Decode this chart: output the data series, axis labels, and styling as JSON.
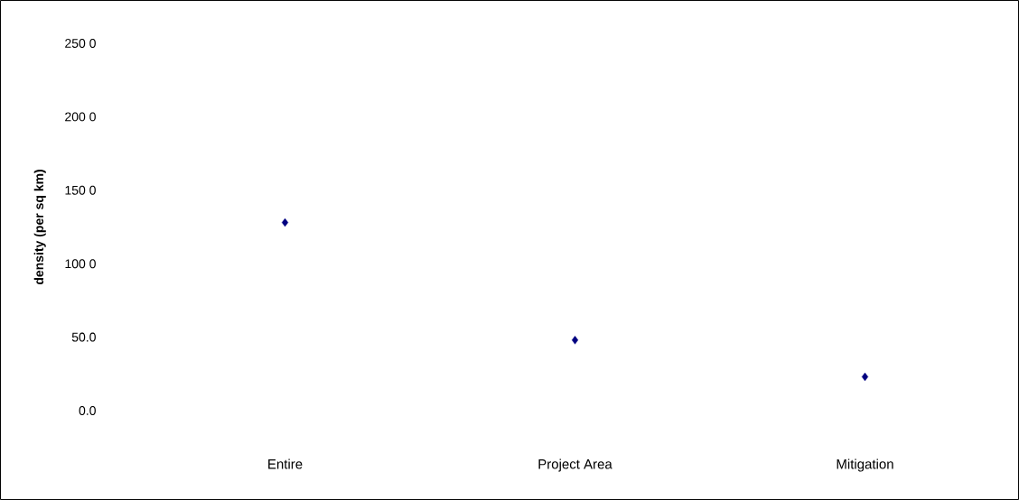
{
  "chart_data": {
    "type": "scatter",
    "ylabel": "density (per sq km)",
    "categories": [
      "Entire",
      "Project Area",
      "Mitigation"
    ],
    "series": [
      {
        "color": "#000080",
        "values": [
          128,
          48,
          23
        ]
      }
    ],
    "marker": "diamond",
    "ylim": [
      0,
      250
    ],
    "yticks": [
      {
        "value": 0,
        "label": "0.0"
      },
      {
        "value": 50,
        "label": "50.0"
      },
      {
        "value": 100,
        "label": "100 0"
      },
      {
        "value": 150,
        "label": "150 0"
      },
      {
        "value": 200,
        "label": "200 0"
      },
      {
        "value": 250,
        "label": "250 0"
      }
    ],
    "grid": false
  }
}
